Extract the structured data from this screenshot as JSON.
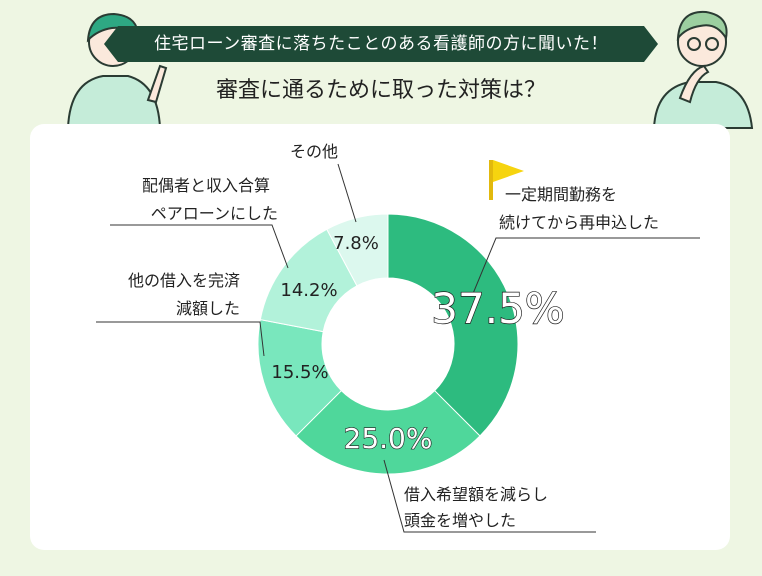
{
  "header": {
    "banner": "住宅ローン審査に落ちたことのある看護師の方に聞いた！",
    "question": "審査に通るために取った対策は？"
  },
  "colors": {
    "banner_bg": "#1e4a37",
    "page_bg": "#eef6e3",
    "flag": "#f6d40f"
  },
  "chart_data": {
    "type": "pie",
    "donut": true,
    "title": "審査に通るために取った対策は？",
    "slices": [
      {
        "label_lines": [
          "一定期間勤務を",
          "続けてから再申込した"
        ],
        "pct_label": "37.5%",
        "value": 37.5,
        "color": "#2dbb7f"
      },
      {
        "label_lines": [
          "借入希望額を減らし",
          "頭金を増やした"
        ],
        "pct_label": "25.0%",
        "value": 25.0,
        "color": "#4fd79b"
      },
      {
        "label_lines": [
          "他の借入を完済",
          "減額した"
        ],
        "pct_label": "15.5%",
        "value": 15.5,
        "color": "#79e7bd"
      },
      {
        "label_lines": [
          "配偶者と収入合算",
          "ペアローンにした"
        ],
        "pct_label": "14.2%",
        "value": 14.2,
        "color": "#b2f2da"
      },
      {
        "label_lines": [
          "その他"
        ],
        "pct_label": "7.8%",
        "value": 7.8,
        "color": "#dcf8ee"
      }
    ]
  }
}
